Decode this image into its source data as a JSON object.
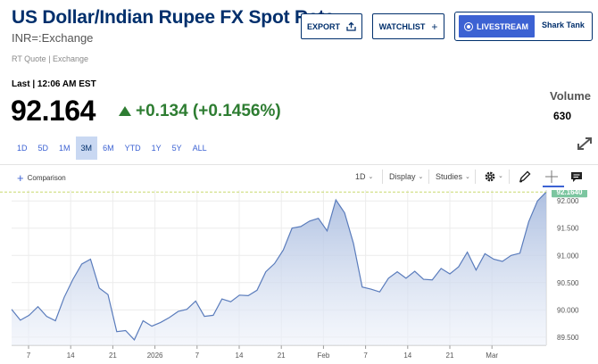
{
  "header": {
    "title": "US Dollar/Indian Rupee FX Spot Rate",
    "symbol": "INR=:Exchange",
    "quote_type": "RT Quote | Exchange"
  },
  "actions": {
    "export_label": "EXPORT",
    "watchlist_label": "WATCHLIST",
    "watchlist_icon": "+",
    "livestream_label": "LIVESTREAM",
    "show_name": "Shark Tank"
  },
  "quote": {
    "last_label": "Last | 12:06 AM EST",
    "price": "92.164",
    "change": "+0.134 (+0.1456%)",
    "volume_label": "Volume",
    "volume_value": "630"
  },
  "ranges": [
    {
      "label": "1D",
      "active": false
    },
    {
      "label": "5D",
      "active": false
    },
    {
      "label": "1M",
      "active": false
    },
    {
      "label": "3M",
      "active": true
    },
    {
      "label": "6M",
      "active": false
    },
    {
      "label": "YTD",
      "active": false
    },
    {
      "label": "1Y",
      "active": false
    },
    {
      "label": "5Y",
      "active": false
    },
    {
      "label": "ALL",
      "active": false
    }
  ],
  "toolbar": {
    "comparison_label": "Comparison",
    "interval_label": "1D",
    "display_label": "Display",
    "studies_label": "Studies",
    "icons": [
      "gear-icon",
      "pencil-icon",
      "crosshair-icon",
      "comment-icon"
    ]
  },
  "colors": {
    "brand": "#002f6c",
    "accent": "#3c62d3",
    "positive": "#2e7d32",
    "line": "#5a7cbc",
    "price_tag": "#7cc6a0",
    "reference_line": "#c8d96e"
  },
  "chart_data": {
    "type": "area",
    "x_ticks": [
      "7",
      "14",
      "21",
      "2026",
      "7",
      "14",
      "21",
      "Feb",
      "7",
      "14",
      "21",
      "Mar"
    ],
    "y_ticks": [
      "92.000",
      "91.500",
      "91.000",
      "90.500",
      "90.000",
      "89.500"
    ],
    "ylim": [
      89.35,
      92.2
    ],
    "current_price_label": "92.1640",
    "reference_value": 92.164,
    "values": [
      90.01,
      89.81,
      89.9,
      90.06,
      89.88,
      89.8,
      90.23,
      90.56,
      90.84,
      90.93,
      90.4,
      90.28,
      89.6,
      89.62,
      89.45,
      89.8,
      89.7,
      89.77,
      89.86,
      89.97,
      90.01,
      90.16,
      89.88,
      89.9,
      90.2,
      90.15,
      90.27,
      90.26,
      90.36,
      90.7,
      90.85,
      91.1,
      91.5,
      91.53,
      91.63,
      91.68,
      91.45,
      92.02,
      91.78,
      91.22,
      90.42,
      90.38,
      90.33,
      90.58,
      90.7,
      90.58,
      90.71,
      90.56,
      90.55,
      90.76,
      90.66,
      90.79,
      91.06,
      90.73,
      91.03,
      90.93,
      90.89,
      91.0,
      91.04,
      91.62,
      92.0,
      92.164
    ]
  }
}
